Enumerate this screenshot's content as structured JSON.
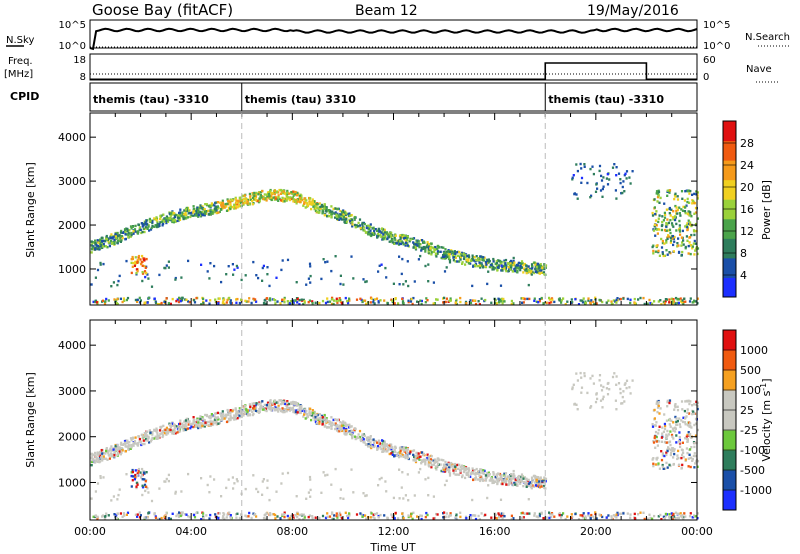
{
  "header": {
    "station": "Goose Bay (fitACF)",
    "beam": "Beam 12",
    "date": "19/May/2016"
  },
  "strip_nsky": {
    "left_label": "N.Sky",
    "left_ticks": [
      "10^5",
      "10^0"
    ],
    "right_ticks": [
      "10^5",
      "10^0"
    ],
    "right_label": "N.Search"
  },
  "strip_freq": {
    "left_label_1": "Freq.",
    "left_label_2": "[MHz]",
    "left_ticks": [
      "18",
      "8"
    ],
    "right_ticks": [
      "60",
      "0"
    ],
    "right_label": "Nave"
  },
  "cpid": {
    "label": "CPID",
    "segments": [
      {
        "text": "themis (tau) -3310",
        "start_hour": 0
      },
      {
        "text": "themis (tau) 3310",
        "start_hour": 6
      },
      {
        "text": "themis (tau) -3310",
        "start_hour": 18
      }
    ]
  },
  "colors": {
    "power": [
      "#1c2fff",
      "#1a4fa8",
      "#2e7d5c",
      "#4aa34a",
      "#9ad13a",
      "#f0d020",
      "#f59a1a",
      "#f05a10",
      "#e01010"
    ],
    "velocity": [
      "#e01010",
      "#f05a10",
      "#f5a020",
      "#c8c8c0",
      "#c8c8c0",
      "#6cc83c",
      "#2e7d5c",
      "#1a4fa8",
      "#1c2fff"
    ],
    "ground": "#c8c8c0"
  },
  "chart_data": [
    {
      "type": "heatmap",
      "title": "",
      "xlabel": "",
      "ylabel": "Slant Range [km]",
      "xlim": [
        0,
        24
      ],
      "ylim": [
        180,
        4550
      ],
      "yticks": [
        "1000",
        "2000",
        "3000",
        "4000"
      ],
      "colorbar_label": "Power [dB]",
      "colorbar_ticks": [
        "4",
        "8",
        "12",
        "16",
        "20",
        "24",
        "28"
      ],
      "colorbar_range": [
        0,
        30
      ],
      "approx_echo_band_range_km": [
        [
          0.0,
          1500
        ],
        [
          1.0,
          1700
        ],
        [
          2.0,
          1950
        ],
        [
          3.0,
          2150
        ],
        [
          4.0,
          2300
        ],
        [
          5.0,
          2400
        ],
        [
          6.0,
          2550
        ],
        [
          7.0,
          2700
        ],
        [
          8.0,
          2650
        ],
        [
          9.0,
          2400
        ],
        [
          10.0,
          2200
        ],
        [
          11.0,
          1900
        ],
        [
          12.0,
          1700
        ],
        [
          13.0,
          1550
        ],
        [
          14.0,
          1350
        ],
        [
          15.0,
          1200
        ],
        [
          16.0,
          1100
        ],
        [
          17.0,
          1050
        ],
        [
          18.0,
          1000
        ]
      ]
    },
    {
      "type": "heatmap",
      "title": "",
      "xlabel": "Time UT",
      "ylabel": "Slant Range [km]",
      "xlim": [
        0,
        24
      ],
      "ylim": [
        180,
        4550
      ],
      "xticks": [
        "00:00",
        "04:00",
        "08:00",
        "12:00",
        "16:00",
        "20:00",
        "00:00"
      ],
      "yticks": [
        "1000",
        "2000",
        "3000",
        "4000"
      ],
      "colorbar_label": "Velocity [m s^-1]",
      "colorbar_ticks": [
        "1000",
        "500",
        "100",
        "25",
        "-25",
        "-100",
        "-500",
        "-1000"
      ]
    }
  ]
}
